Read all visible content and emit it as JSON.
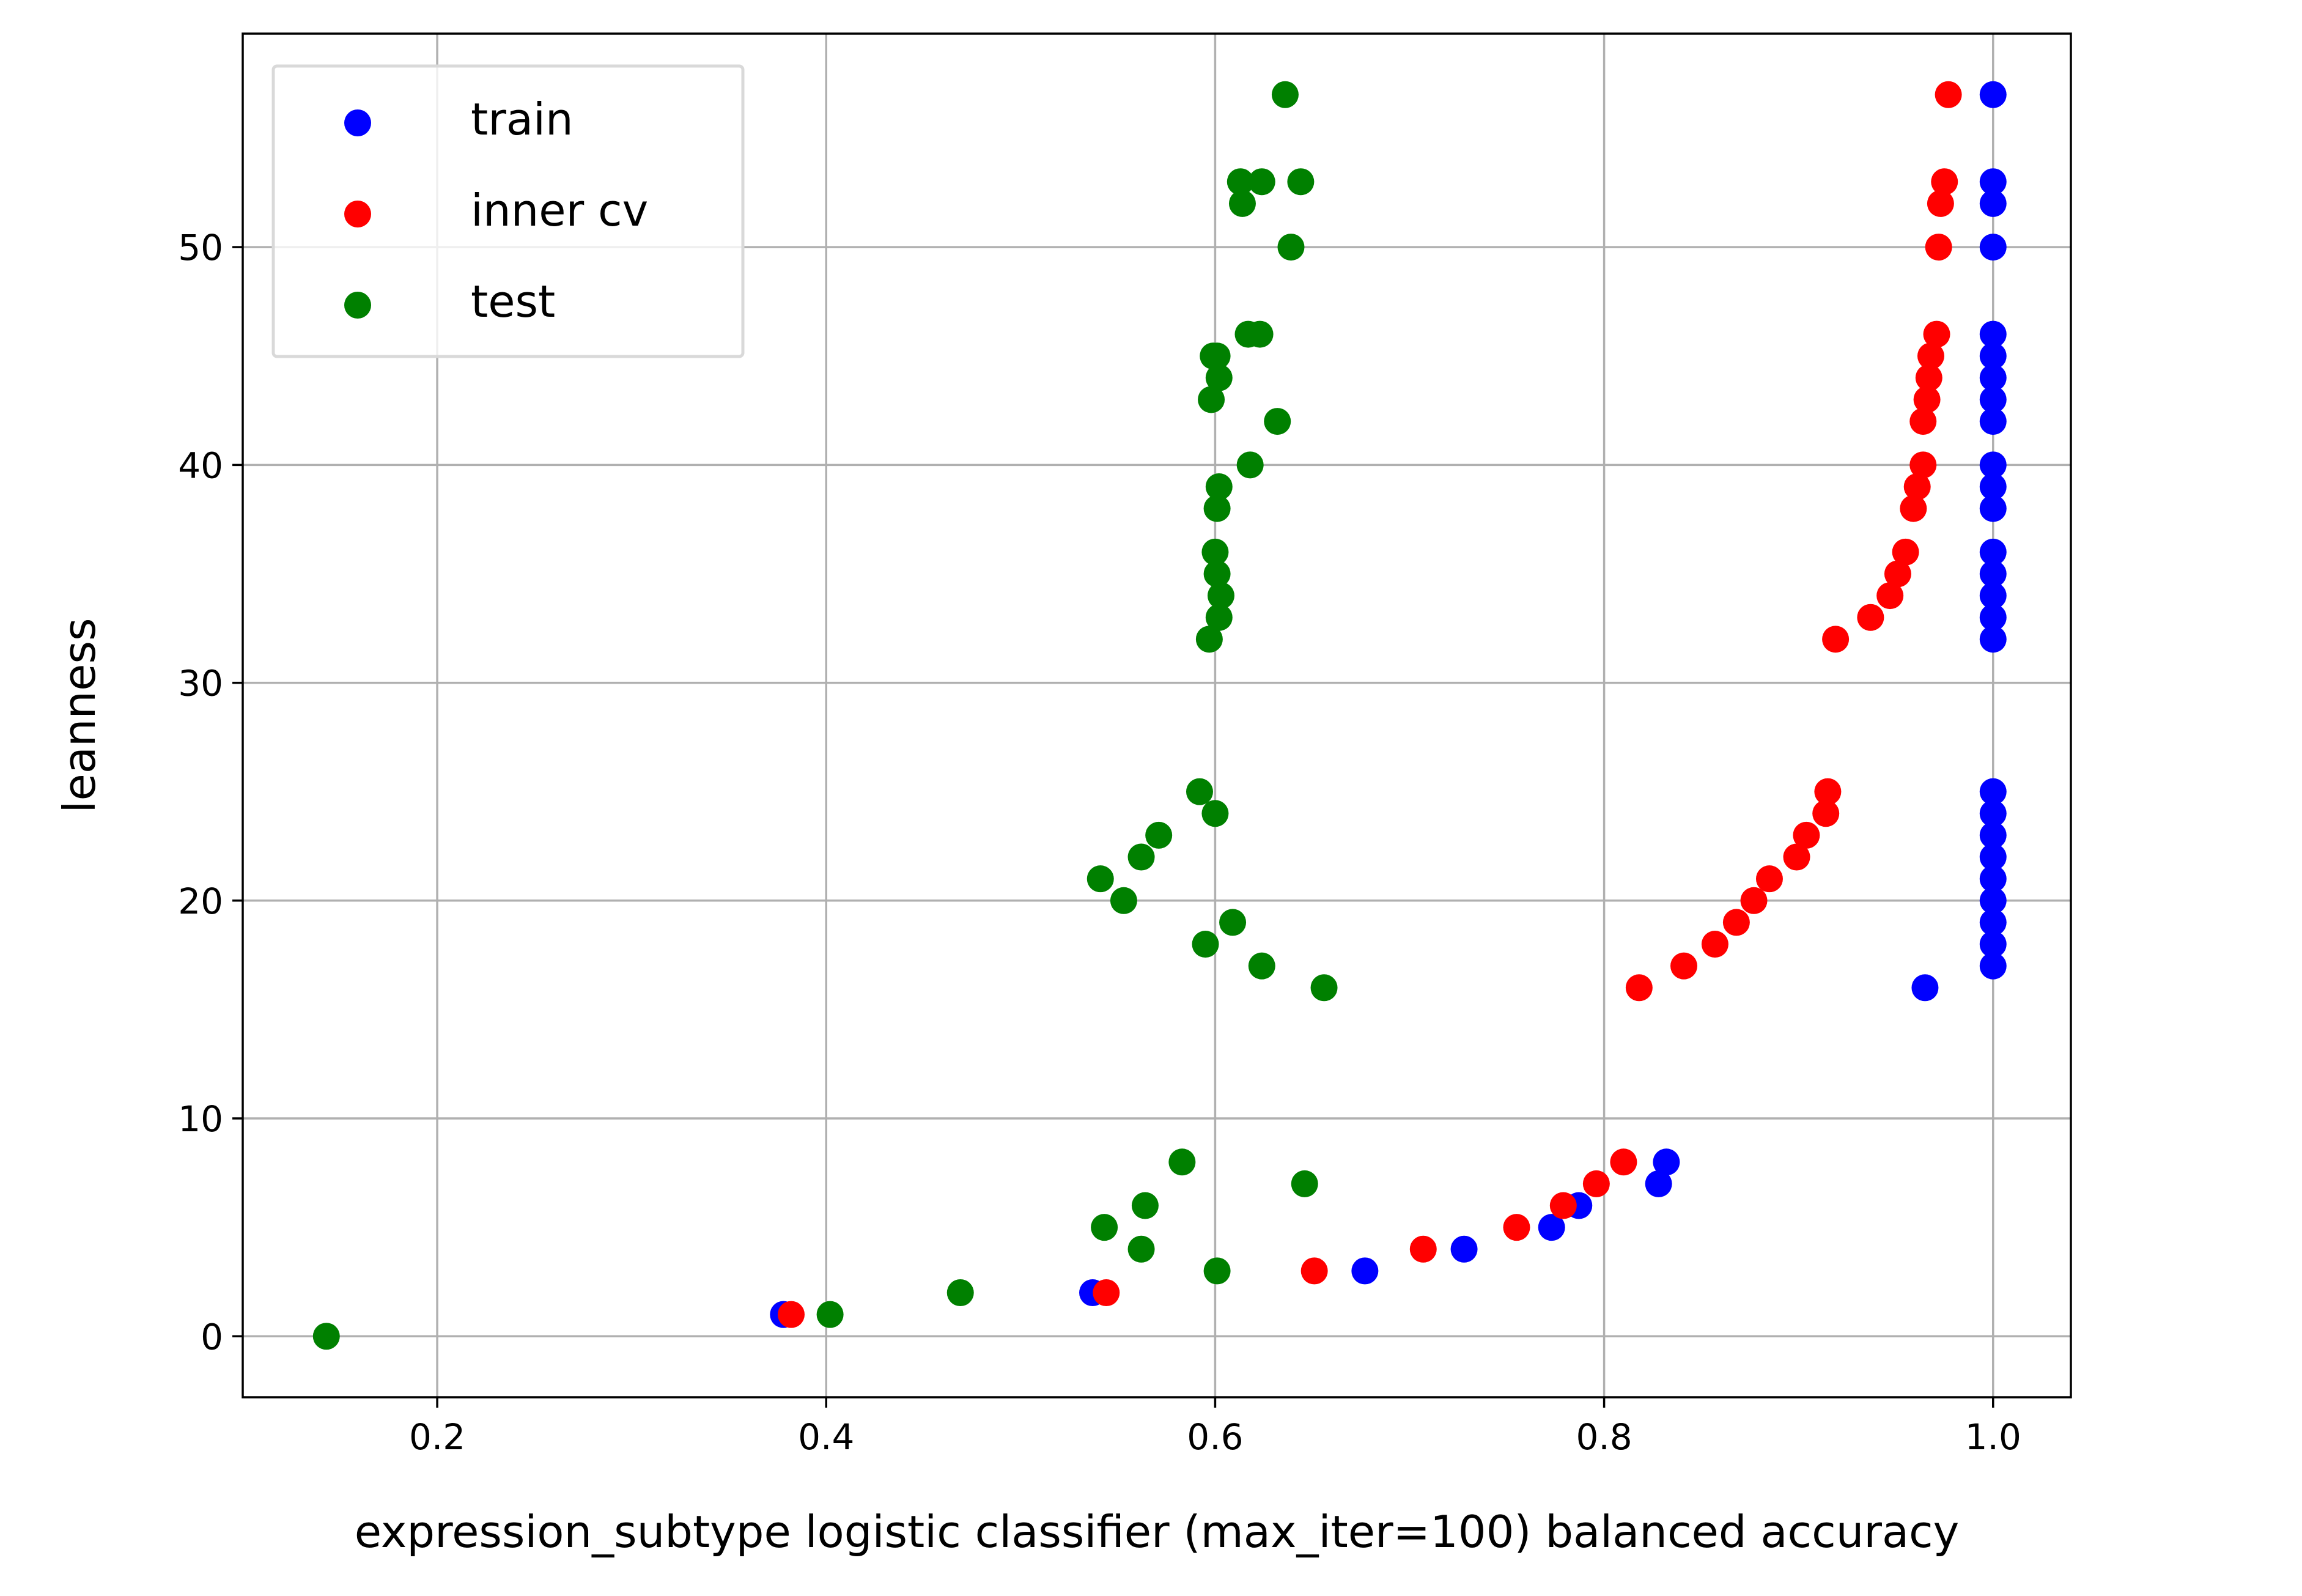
{
  "chart_data": {
    "type": "scatter",
    "title": "",
    "xlabel": "expression_subtype logistic classifier (max_iter=100) balanced accuracy",
    "ylabel": "leanness",
    "xlim": [
      0.1,
      1.04
    ],
    "ylim": [
      -2.8,
      59.8
    ],
    "xticks": [
      0.2,
      0.4,
      0.6,
      0.8,
      1.0
    ],
    "xtick_labels": [
      "0.2",
      "0.4",
      "0.6",
      "0.8",
      "1.0"
    ],
    "yticks": [
      0,
      10,
      20,
      30,
      40,
      50
    ],
    "ytick_labels": [
      "0",
      "10",
      "20",
      "30",
      "40",
      "50"
    ],
    "grid": true,
    "legend_position": "top-left",
    "series": [
      {
        "name": "train",
        "color": "#0000ff",
        "points": [
          [
            0.378,
            1
          ],
          [
            0.537,
            2
          ],
          [
            0.677,
            3
          ],
          [
            0.728,
            4
          ],
          [
            0.773,
            5
          ],
          [
            0.787,
            6
          ],
          [
            0.828,
            7
          ],
          [
            0.832,
            8
          ],
          [
            0.965,
            16
          ],
          [
            1.0,
            17
          ],
          [
            1.0,
            18
          ],
          [
            1.0,
            19
          ],
          [
            1.0,
            20
          ],
          [
            1.0,
            21
          ],
          [
            1.0,
            22
          ],
          [
            1.0,
            23
          ],
          [
            1.0,
            24
          ],
          [
            1.0,
            25
          ],
          [
            1.0,
            32
          ],
          [
            1.0,
            33
          ],
          [
            1.0,
            34
          ],
          [
            1.0,
            35
          ],
          [
            1.0,
            36
          ],
          [
            1.0,
            38
          ],
          [
            1.0,
            39
          ],
          [
            1.0,
            40
          ],
          [
            1.0,
            42
          ],
          [
            1.0,
            43
          ],
          [
            1.0,
            44
          ],
          [
            1.0,
            45
          ],
          [
            1.0,
            46
          ],
          [
            1.0,
            50
          ],
          [
            1.0,
            52
          ],
          [
            1.0,
            53
          ],
          [
            1.0,
            57
          ]
        ]
      },
      {
        "name": "inner cv",
        "color": "#ff0000",
        "points": [
          [
            0.382,
            1
          ],
          [
            0.544,
            2
          ],
          [
            0.651,
            3
          ],
          [
            0.707,
            4
          ],
          [
            0.755,
            5
          ],
          [
            0.779,
            6
          ],
          [
            0.796,
            7
          ],
          [
            0.81,
            8
          ],
          [
            0.818,
            16
          ],
          [
            0.841,
            17
          ],
          [
            0.857,
            18
          ],
          [
            0.868,
            19
          ],
          [
            0.877,
            20
          ],
          [
            0.885,
            21
          ],
          [
            0.899,
            22
          ],
          [
            0.904,
            23
          ],
          [
            0.914,
            24
          ],
          [
            0.915,
            25
          ],
          [
            0.919,
            32
          ],
          [
            0.937,
            33
          ],
          [
            0.947,
            34
          ],
          [
            0.951,
            35
          ],
          [
            0.955,
            36
          ],
          [
            0.959,
            38
          ],
          [
            0.961,
            39
          ],
          [
            0.964,
            40
          ],
          [
            0.964,
            42
          ],
          [
            0.966,
            43
          ],
          [
            0.967,
            44
          ],
          [
            0.968,
            45
          ],
          [
            0.971,
            46
          ],
          [
            0.972,
            50
          ],
          [
            0.973,
            52
          ],
          [
            0.975,
            53
          ],
          [
            0.977,
            57
          ]
        ]
      },
      {
        "name": "test",
        "color": "#008000",
        "points": [
          [
            0.143,
            0
          ],
          [
            0.402,
            1
          ],
          [
            0.469,
            2
          ],
          [
            0.601,
            3
          ],
          [
            0.562,
            4
          ],
          [
            0.543,
            5
          ],
          [
            0.564,
            6
          ],
          [
            0.646,
            7
          ],
          [
            0.583,
            8
          ],
          [
            0.656,
            16
          ],
          [
            0.624,
            17
          ],
          [
            0.595,
            18
          ],
          [
            0.609,
            19
          ],
          [
            0.553,
            20
          ],
          [
            0.541,
            21
          ],
          [
            0.562,
            22
          ],
          [
            0.571,
            23
          ],
          [
            0.6,
            24
          ],
          [
            0.592,
            25
          ],
          [
            0.597,
            32
          ],
          [
            0.602,
            33
          ],
          [
            0.603,
            34
          ],
          [
            0.601,
            35
          ],
          [
            0.6,
            36
          ],
          [
            0.601,
            38
          ],
          [
            0.602,
            39
          ],
          [
            0.618,
            40
          ],
          [
            0.632,
            42
          ],
          [
            0.598,
            43
          ],
          [
            0.602,
            44
          ],
          [
            0.599,
            45
          ],
          [
            0.601,
            45
          ],
          [
            0.617,
            46
          ],
          [
            0.623,
            46
          ],
          [
            0.639,
            50
          ],
          [
            0.614,
            52
          ],
          [
            0.613,
            53
          ],
          [
            0.624,
            53
          ],
          [
            0.644,
            53
          ],
          [
            0.636,
            57
          ]
        ]
      }
    ]
  }
}
